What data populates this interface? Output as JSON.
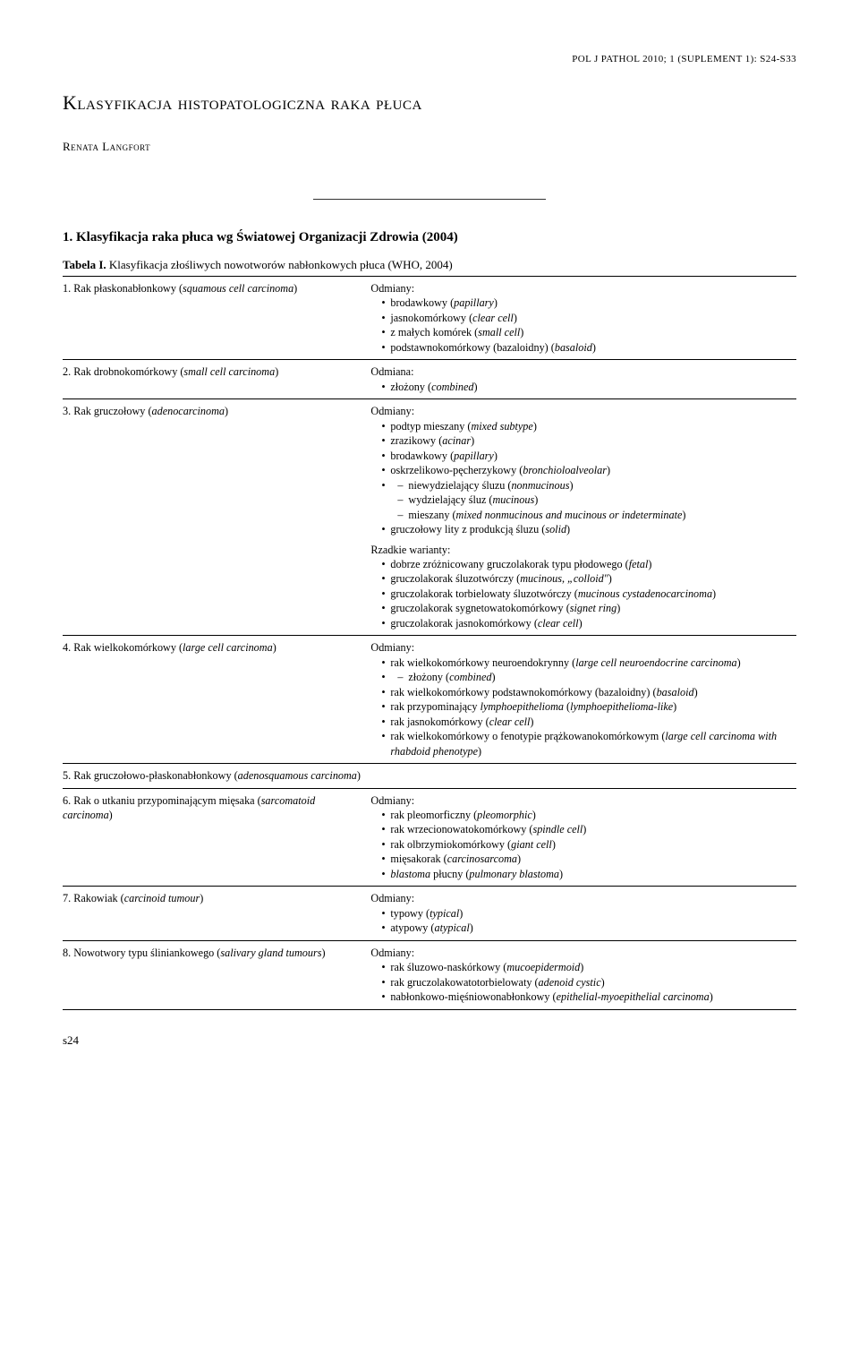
{
  "running_head": "POL J PATHOL 2010; 1 (SUPLEMENT 1): S24-S33",
  "title": "Klasyfikacja histopatologiczna raka płuca",
  "author": "Renata Langfort",
  "section_heading": "1. Klasyfikacja raka płuca wg Światowej Organizacji Zdrowia (2004)",
  "table_caption_label": "Tabela I.",
  "table_caption_text": "Klasyfikacja złośliwych nowotworów nabłonkowych płuca (WHO, 2004)",
  "rows": {
    "r1": {
      "left": "1. Rak płaskonabłonkowy (<i>squamous cell carcinoma</i>)",
      "label": "Odmiany:",
      "items": [
        "brodawkowy (<i>papillary</i>)",
        "jasnokomórkowy (<i>clear cell</i>)",
        "z małych komórek (<i>small cell</i>)",
        "podstawnokomórkowy (bazaloidny) (<i>basaloid</i>)"
      ]
    },
    "r2": {
      "left": "2. Rak drobnokomórkowy (<i>small cell carcinoma</i>)",
      "label": "Odmiana:",
      "items": [
        "złożony (<i>combined</i>)"
      ]
    },
    "r3": {
      "left": "3. Rak gruczołowy (<i>adenocarcinoma</i>)",
      "label": "Odmiany:",
      "items": [
        "podtyp mieszany (<i>mixed subtype</i>)",
        "zrazikowy (<i>acinar</i>)",
        "brodawkowy (<i>papillary</i>)",
        "oskrzelikowo-pęcherzykowy (<i>bronchioloalveolar</i>)"
      ],
      "sub": [
        "niewydzielający śluzu (<i>nonmucinous</i>)",
        "wydzielający śluz (<i>mucinous</i>)",
        "mieszany (<i>mixed nonmucinous and mucinous or indeterminate</i>)"
      ],
      "items2": [
        "gruczołowy lity z produkcją śluzu (<i>solid</i>)"
      ],
      "rare_label": "Rzadkie warianty:",
      "rare": [
        "dobrze zróżnicowany gruczolakorak typu płodowego (<i>fetal</i>)",
        "gruczolakorak śluzotwórczy (<i>mucinous, „colloid\"</i>)",
        "gruczolakorak torbielowaty śluzotwórczy (<i>mucinous cystadenocarcinoma</i>)",
        "gruczolakorak sygnetowatokomórkowy (<i>signet ring</i>)",
        "gruczolakorak jasnokomórkowy (<i>clear cell</i>)"
      ]
    },
    "r4": {
      "left": "4. Rak wielkokomórkowy (<i>large cell carcinoma</i>)",
      "label": "Odmiany:",
      "items": [
        "rak wielkokomórkowy neuroendokrynny (<i>large cell neuroendocrine carcinoma</i>)"
      ],
      "sub": [
        "złożony (<i>combined</i>)"
      ],
      "items2": [
        "rak wielkokomórkowy podstawnokomórkowy (bazaloidny) (<i>basaloid</i>)",
        "rak przypominający <i>lymphoepithelioma</i> (<i>lymphoepithelioma-like</i>)",
        "rak jasnokomórkowy (<i>clear cell</i>)",
        "rak wielkokomórkowy o fenotypie prążkowanokomórkowym (<i>large cell carcinoma with rhabdoid phenotype</i>)"
      ]
    },
    "r5": {
      "left": "5. Rak gruczołowo-płaskonabłonkowy (<i>adenosquamous carcinoma</i>)"
    },
    "r6": {
      "left": "6. Rak o utkaniu przypominającym mięsaka (<i>sarcomatoid carcinoma</i>)",
      "label": "Odmiany:",
      "items": [
        "rak pleomorficzny (<i>pleomorphic</i>)",
        "rak wrzecionowatokomórkowy (<i>spindle cell</i>)",
        "rak olbrzymiokomórkowy (<i>giant cell</i>)",
        "mięsakorak (<i>carcinosarcoma</i>)",
        "<i>blastoma</i> płucny (<i>pulmonary blastoma</i>)"
      ]
    },
    "r7": {
      "left": "7. Rakowiak (<i>carcinoid tumour</i>)",
      "label": "Odmiany:",
      "items": [
        "typowy (<i>typical</i>)",
        "atypowy (<i>atypical</i>)"
      ]
    },
    "r8": {
      "left": "8. Nowotwory typu śliniankowego (<i>salivary gland tumours</i>)",
      "label": "Odmiany:",
      "items": [
        "rak śluzowo-naskórkowy (<i>mucoepidermoid</i>)",
        "rak gruczolakowatotorbielowaty (<i>adenoid cystic</i>)",
        "nabłonkowo-mięśniowonabłonkowy (<i>epithelial-myoepithelial carcinoma</i>)"
      ]
    }
  },
  "page_number": "s24"
}
